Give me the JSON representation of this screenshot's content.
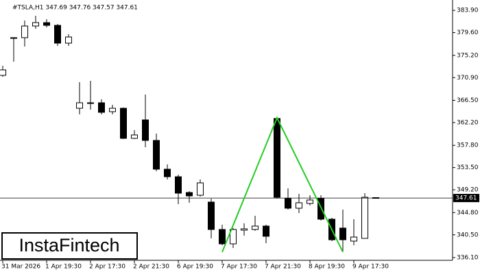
{
  "chart_data": {
    "type": "candlestick",
    "title": "#TSLA,H1  347.69 347.76 347.57 347.61",
    "categories": [
      "31 Mar 2026",
      null,
      null,
      null,
      "1 Apr 19:30",
      null,
      null,
      null,
      "2 Apr 17:30",
      null,
      null,
      null,
      "2 Apr 21:30",
      null,
      null,
      null,
      "6 Apr 19:30",
      null,
      null,
      null,
      "7 Apr 17:30",
      null,
      null,
      null,
      "7 Apr 21:30",
      null,
      null,
      null,
      "8 Apr 19:30",
      null,
      null,
      null,
      "9 Apr 17:30",
      null,
      null
    ],
    "open": [
      371.33,
      378.62,
      378.62,
      380.87,
      381.53,
      381.0,
      377.56,
      364.97,
      366.03,
      366.03,
      364.31,
      364.97,
      359.15,
      362.72,
      358.75,
      353.19,
      351.73,
      348.68,
      348.15,
      346.83,
      341.53,
      338.75,
      341.4,
      341.53,
      342.19,
      362.99,
      347.49,
      345.64,
      346.56,
      347.49,
      343.52,
      341.8,
      339.28,
      339.81,
      347.69
    ],
    "high": [
      373.19,
      378.7,
      381.93,
      382.85,
      382.19,
      381.27,
      379.28,
      370.01,
      370.27,
      366.7,
      365.64,
      365.11,
      360.74,
      367.62,
      360.07,
      354.11,
      352.13,
      348.95,
      351.2,
      347.49,
      342.46,
      341.8,
      342.72,
      344.18,
      342.46,
      363.12,
      349.48,
      348.42,
      348.15,
      348.15,
      343.78,
      345.37,
      343.52,
      348.55,
      347.76
    ],
    "low": [
      371.07,
      373.98,
      376.89,
      380.34,
      380.6,
      377.03,
      377.03,
      363.78,
      364.71,
      363.78,
      363.78,
      359.01,
      359.01,
      357.42,
      352.79,
      351.2,
      346.43,
      346.7,
      347.89,
      339.81,
      338.48,
      337.95,
      340.34,
      341.27,
      338.88,
      347.49,
      345.37,
      344.71,
      346.17,
      343.25,
      339.28,
      337.16,
      338.48,
      339.81,
      347.57
    ],
    "close": [
      372.39,
      378.48,
      380.87,
      381.53,
      381.0,
      377.56,
      378.75,
      366.03,
      365.9,
      364.18,
      364.97,
      359.15,
      359.81,
      358.75,
      353.19,
      351.73,
      348.55,
      348.02,
      350.54,
      341.53,
      338.75,
      341.53,
      341.66,
      342.19,
      340.21,
      347.76,
      345.64,
      346.7,
      347.23,
      343.52,
      339.54,
      339.54,
      340.07,
      347.76,
      347.61
    ],
    "up_color": "#ffffff",
    "down_color": "#000000",
    "ylim": [
      335.57,
      385.24
    ],
    "yticks": [
      {
        "value": 383.9,
        "label": "383.90"
      },
      {
        "value": 379.6,
        "label": "379.60"
      },
      {
        "value": 375.2,
        "label": "375.20"
      },
      {
        "value": 370.9,
        "label": "370.90"
      },
      {
        "value": 366.5,
        "label": "366.50"
      },
      {
        "value": 362.2,
        "label": "362.20"
      },
      {
        "value": 357.8,
        "label": "357.80"
      },
      {
        "value": 353.5,
        "label": "353.50"
      },
      {
        "value": 349.2,
        "label": "349.20"
      },
      {
        "value": 344.8,
        "label": "344.80"
      },
      {
        "value": 340.5,
        "label": "340.50"
      },
      {
        "value": 336.1,
        "label": "336.10"
      }
    ],
    "last_price": 347.61,
    "pattern": {
      "color": "#22cc22",
      "index": [
        20,
        25,
        31
      ],
      "price": [
        337.16,
        363.12,
        337.16
      ]
    },
    "watermark": "InstaFintech"
  }
}
